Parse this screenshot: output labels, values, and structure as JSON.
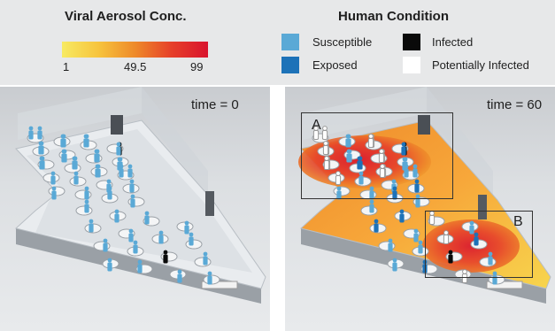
{
  "legend": {
    "concentration": {
      "title": "Viral Aerosol Conc.",
      "ticks": [
        "1",
        "49.5",
        "99"
      ],
      "gradient_colors": [
        "#f7ea62",
        "#f7c43d",
        "#ee8a2a",
        "#e6402a",
        "#d9142e"
      ]
    },
    "condition": {
      "title": "Human Condition",
      "items": [
        {
          "label": "Susceptible",
          "color": "#5aa9d6"
        },
        {
          "label": "Infected",
          "color": "#0a0a0a"
        },
        {
          "label": "Exposed",
          "color": "#1d72b8"
        },
        {
          "label": "Potentially Infected",
          "color": "#ffffff"
        }
      ]
    }
  },
  "panels": [
    {
      "time_label": "time = 0"
    },
    {
      "time_label": "time = 60",
      "boxes": [
        "A",
        "B"
      ]
    }
  ]
}
